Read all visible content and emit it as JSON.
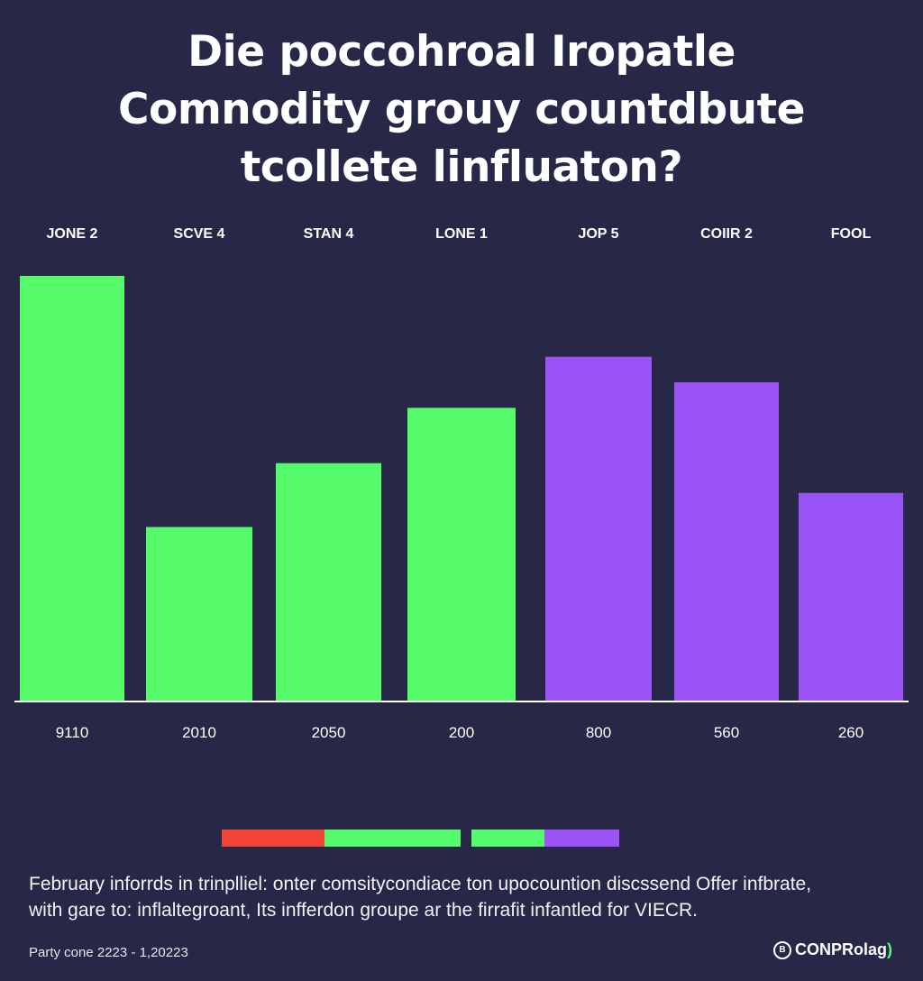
{
  "title_lines": [
    "Die poccohroal Iropatle",
    "Comnodity grouy countdbute",
    "tcollete linfluaton?"
  ],
  "chart_data": {
    "type": "bar",
    "title": "Die poccohroal Iropatle Comnodity grouy countdbute tcollete linfluaton?",
    "categories": [
      "JONE 2",
      "SCVE 4",
      "STAN 4",
      "LONE 1",
      "JOP 5",
      "COIIR 2",
      "FOOL"
    ],
    "value_labels": [
      "9110",
      "2010",
      "2050",
      "200",
      "800",
      "560",
      "260"
    ],
    "values": [
      100,
      41,
      56,
      69,
      81,
      75,
      49
    ],
    "bar_colors": [
      "#55fb6a",
      "#55fb6a",
      "#55fb6a",
      "#55fb6a",
      "#9c53f5",
      "#9c53f5",
      "#9c53f5"
    ],
    "ylim": [
      0,
      100
    ],
    "xlabel": "",
    "ylabel": "",
    "grid": false,
    "legend": "none"
  },
  "legend_segments": [
    {
      "color": "#f04438",
      "share": 114
    },
    {
      "color": "#55fb6a",
      "share": 151
    },
    {
      "color": "#272848",
      "share": 12
    },
    {
      "color": "#55fb6a",
      "share": 81
    },
    {
      "color": "#9c53f5",
      "share": 83
    }
  ],
  "footnote_lines": [
    "February inforrds in trinplliel: onter comsitycondiace ton upocountion discssend Offer infbrate,",
    "with gare to: inflaltegroant, Its infferdon groupe ar the firrafit infantled for VIECR."
  ],
  "source": "Party cone 2223 - 1,20223",
  "brand": {
    "icon": "coin-icon",
    "icon_glyph": "B",
    "name": "CONPRolag",
    "suffix": ")"
  },
  "colors": {
    "background": "#272848",
    "green": "#55fb6a",
    "purple": "#9c53f5",
    "red": "#f04438",
    "axis": "#ffffff"
  }
}
